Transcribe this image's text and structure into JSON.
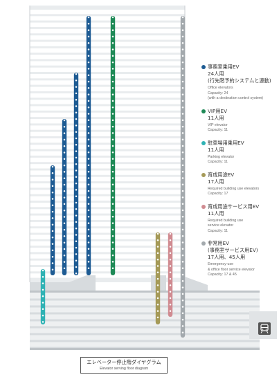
{
  "legend": [
    {
      "color": "#1d5b93",
      "title": "事務室乗用EV",
      "lines": [
        "24人用",
        "(行先階予約システムと連動)"
      ],
      "en": [
        "Office elevators",
        "Capacity: 24",
        "(with a destination control system)"
      ]
    },
    {
      "color": "#1f8a57",
      "title": "VIP用EV",
      "lines": [
        "11人用"
      ],
      "en": [
        "VIP elevator",
        "Capacity: 11"
      ]
    },
    {
      "color": "#2fb2b4",
      "title": "駐車場用乗用EV",
      "lines": [
        "11人用"
      ],
      "en": [
        "Parking elevator",
        "Capacity: 11"
      ]
    },
    {
      "color": "#a59a58",
      "title": "育成用途EV",
      "lines": [
        "17人用"
      ],
      "en": [
        "Required building use elevators",
        "Capacity: 17"
      ]
    },
    {
      "color": "#d08b91",
      "title": "育成用途サービス用EV",
      "lines": [
        "11人用"
      ],
      "en": [
        "Required building use",
        "service elevator",
        "Capacity: 11"
      ]
    },
    {
      "color": "#a3a9ad",
      "title": "非常用EV",
      "lines": [
        "(事務室サービス用EV)",
        "17人用、45人用"
      ],
      "en": [
        "Emergency-use",
        "& office floor service elevator",
        "Capacity: 17 & 45"
      ]
    }
  ],
  "caption": {
    "ja": "エレベーター停止階ダイヤグラム",
    "en": "Elevator serving floor diagram"
  },
  "icons": {
    "train": "train-icon"
  }
}
